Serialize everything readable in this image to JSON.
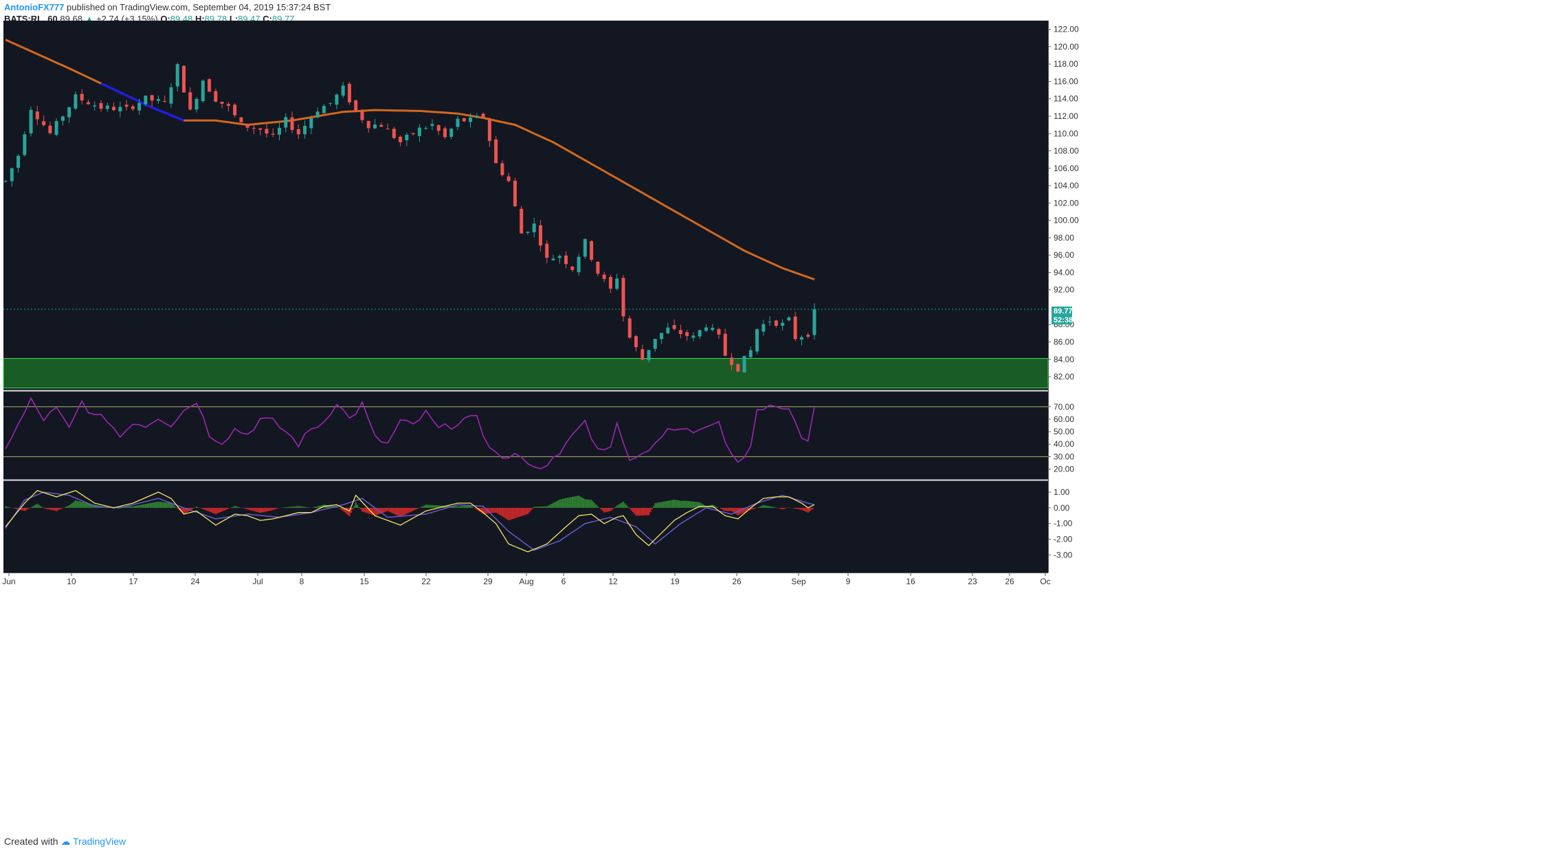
{
  "header": {
    "author": "AntonioFX777",
    "published": "published on TradingView.com, September 04, 2019 15:37:24 BST",
    "symbol": "BATS:RL, 60",
    "last": "89.68",
    "change": "+2.74 (+3.15%)",
    "o_label": "O:",
    "o": "89.48",
    "h_label": "H:",
    "h": "89.78",
    "l_label": "L:",
    "l": "89.47",
    "c_label": "C:",
    "c": "89.77"
  },
  "price_tag": "89.77",
  "countdown_tag": "52:38",
  "footer": {
    "created_with": "Created with",
    "brand": "TradingView"
  },
  "colors": {
    "background": "#131722",
    "up": "#26a69a",
    "down": "#ef5350",
    "ma": "#d2691e",
    "ma_alt": "#1a1aff",
    "zone": "#1a5c25",
    "rsi": "#9c27b0",
    "macd": "#f5e663",
    "signal": "#6a5acd",
    "hist_up": "#2e7d32",
    "hist_down": "#c62828"
  },
  "chart_data": [
    {
      "type": "candlestick",
      "symbol": "BATS:RL",
      "timeframe": "60",
      "y_ticks": [
        "122.00",
        "120.00",
        "118.00",
        "116.00",
        "114.00",
        "112.00",
        "110.00",
        "108.00",
        "106.00",
        "104.00",
        "102.00",
        "100.00",
        "98.00",
        "96.00",
        "94.00",
        "92.00",
        "88.00",
        "86.00",
        "84.00",
        "82.00"
      ],
      "ylim": [
        80.5,
        123
      ],
      "x_labels": [
        "Jun",
        "10",
        "17",
        "24",
        "Jul",
        "8",
        "15",
        "22",
        "29",
        "Aug",
        "6",
        "12",
        "19",
        "26",
        "Sep",
        "9",
        "16",
        "23",
        "26",
        "Oc"
      ],
      "price_path": [
        [
          0,
          104.5
        ],
        [
          2,
          107.5
        ],
        [
          4,
          113
        ],
        [
          7,
          110
        ],
        [
          11,
          114.2
        ],
        [
          15,
          113
        ],
        [
          19,
          112.8
        ],
        [
          22,
          114
        ],
        [
          25,
          113.5
        ],
        [
          27,
          117.7
        ],
        [
          29,
          112.5
        ],
        [
          31,
          116.2
        ],
        [
          33,
          114
        ],
        [
          35,
          113
        ],
        [
          37,
          111
        ],
        [
          40,
          110.5
        ],
        [
          42,
          109.5
        ],
        [
          44,
          111.5
        ],
        [
          46,
          110
        ],
        [
          49,
          112.8
        ],
        [
          51,
          113.5
        ],
        [
          53,
          115.2
        ],
        [
          55,
          112.5
        ],
        [
          57,
          111
        ],
        [
          59,
          111
        ],
        [
          62,
          109
        ],
        [
          65,
          110.5
        ],
        [
          67,
          111
        ],
        [
          69,
          109.5
        ],
        [
          71,
          111.5
        ],
        [
          73,
          111.5
        ],
        [
          75,
          112
        ],
        [
          77,
          106.5
        ],
        [
          79,
          104.5
        ],
        [
          81,
          98.5
        ],
        [
          83,
          99.5
        ],
        [
          85,
          95.5
        ],
        [
          87,
          96
        ],
        [
          89,
          94.5
        ],
        [
          91,
          97.5
        ],
        [
          93,
          94
        ],
        [
          95,
          92
        ],
        [
          96,
          93.5
        ],
        [
          97,
          89
        ],
        [
          98,
          86.5
        ],
        [
          100,
          84
        ],
        [
          102,
          86.5
        ],
        [
          104,
          87.5
        ],
        [
          106,
          87
        ],
        [
          108,
          86.5
        ],
        [
          110,
          88
        ],
        [
          112,
          86.5
        ],
        [
          113,
          84.5
        ],
        [
          115,
          83
        ],
        [
          117,
          85
        ],
        [
          118,
          87.5
        ],
        [
          120,
          88.5
        ],
        [
          122,
          88
        ],
        [
          123,
          88.5
        ],
        [
          124,
          86.5
        ],
        [
          126,
          87
        ],
        [
          127,
          89.77
        ]
      ],
      "n_points": 128,
      "moving_average": [
        [
          0,
          120.8
        ],
        [
          10,
          117.5
        ],
        [
          23,
          113
        ],
        [
          28,
          111.5
        ],
        [
          33,
          111.5
        ],
        [
          38,
          111
        ],
        [
          45,
          111.5
        ],
        [
          53,
          112.5
        ],
        [
          58,
          112.7
        ],
        [
          65,
          112.6
        ],
        [
          71,
          112.3
        ],
        [
          75,
          111.8
        ],
        [
          80,
          111
        ],
        [
          86,
          109
        ],
        [
          92,
          106.5
        ],
        [
          98,
          104
        ],
        [
          104,
          101.5
        ],
        [
          110,
          99
        ],
        [
          116,
          96.5
        ],
        [
          122,
          94.5
        ],
        [
          127,
          93.2
        ]
      ],
      "support_zone": [
        80.7,
        84.1
      ],
      "last_price": 89.77
    },
    {
      "type": "line",
      "name": "RSI",
      "y_ticks": [
        "70.00",
        "60.00",
        "50.00",
        "40.00",
        "30.00",
        "20.00"
      ],
      "ylim": [
        12,
        82
      ],
      "levels": [
        70,
        30
      ],
      "path": [
        [
          0,
          38
        ],
        [
          2,
          55
        ],
        [
          4,
          75
        ],
        [
          6,
          60
        ],
        [
          8,
          68
        ],
        [
          10,
          52
        ],
        [
          12,
          74
        ],
        [
          14,
          62
        ],
        [
          16,
          60
        ],
        [
          18,
          46
        ],
        [
          20,
          58
        ],
        [
          22,
          55
        ],
        [
          24,
          62
        ],
        [
          26,
          56
        ],
        [
          28,
          67
        ],
        [
          30,
          75
        ],
        [
          32,
          48
        ],
        [
          34,
          42
        ],
        [
          36,
          52
        ],
        [
          38,
          48
        ],
        [
          40,
          60
        ],
        [
          42,
          58
        ],
        [
          44,
          50
        ],
        [
          46,
          40
        ],
        [
          48,
          52
        ],
        [
          50,
          58
        ],
        [
          52,
          74
        ],
        [
          54,
          60
        ],
        [
          56,
          72
        ],
        [
          58,
          45
        ],
        [
          60,
          40
        ],
        [
          62,
          58
        ],
        [
          64,
          55
        ],
        [
          66,
          65
        ],
        [
          68,
          52
        ],
        [
          70,
          55
        ],
        [
          72,
          60
        ],
        [
          74,
          60
        ],
        [
          75,
          48
        ],
        [
          77,
          32
        ],
        [
          79,
          28
        ],
        [
          81,
          32
        ],
        [
          83,
          20
        ],
        [
          85,
          25
        ],
        [
          87,
          30
        ],
        [
          89,
          48
        ],
        [
          91,
          58
        ],
        [
          93,
          35
        ],
        [
          95,
          40
        ],
        [
          96,
          55
        ],
        [
          97,
          40
        ],
        [
          98,
          30
        ],
        [
          100,
          32
        ],
        [
          102,
          42
        ],
        [
          104,
          50
        ],
        [
          106,
          52
        ],
        [
          108,
          50
        ],
        [
          110,
          56
        ],
        [
          112,
          60
        ],
        [
          113,
          42
        ],
        [
          115,
          25
        ],
        [
          117,
          40
        ],
        [
          118,
          65
        ],
        [
          120,
          72
        ],
        [
          122,
          66
        ],
        [
          123,
          70
        ],
        [
          124,
          60
        ],
        [
          125,
          42
        ],
        [
          126,
          45
        ],
        [
          127,
          68
        ]
      ]
    },
    {
      "type": "line",
      "name": "MACD",
      "y_ticks": [
        "1.00",
        "0.00",
        "-1.00",
        "-2.00",
        "-3.00"
      ],
      "ylim": [
        -3.2,
        1.7
      ],
      "macd_path": [
        [
          0,
          -1.2
        ],
        [
          3,
          0.3
        ],
        [
          5,
          1.1
        ],
        [
          8,
          0.7
        ],
        [
          11,
          1.1
        ],
        [
          14,
          0.3
        ],
        [
          17,
          0
        ],
        [
          20,
          0.3
        ],
        [
          24,
          1
        ],
        [
          26,
          0.6
        ],
        [
          28,
          -0.4
        ],
        [
          30,
          -0.2
        ],
        [
          33,
          -1.1
        ],
        [
          36,
          -0.4
        ],
        [
          38,
          -0.5
        ],
        [
          40,
          -0.8
        ],
        [
          42,
          -0.7
        ],
        [
          44,
          -0.5
        ],
        [
          46,
          -0.3
        ],
        [
          48,
          -0.3
        ],
        [
          50,
          0.1
        ],
        [
          52,
          0.2
        ],
        [
          54,
          -0.2
        ],
        [
          55,
          0.8
        ],
        [
          58,
          -0.5
        ],
        [
          62,
          -1.1
        ],
        [
          66,
          -0.2
        ],
        [
          69,
          0.1
        ],
        [
          71,
          0.3
        ],
        [
          73,
          0.3
        ],
        [
          75,
          -0.3
        ],
        [
          77,
          -1
        ],
        [
          79,
          -2.3
        ],
        [
          82,
          -2.8
        ],
        [
          85,
          -2.3
        ],
        [
          88,
          -1.2
        ],
        [
          90,
          -0.5
        ],
        [
          92,
          -0.4
        ],
        [
          94,
          -1
        ],
        [
          96,
          -0.6
        ],
        [
          97,
          -0.5
        ],
        [
          99,
          -1.7
        ],
        [
          101,
          -2.4
        ],
        [
          103,
          -1.6
        ],
        [
          105,
          -0.8
        ],
        [
          107,
          -0.3
        ],
        [
          109,
          0.1
        ],
        [
          111,
          0.1
        ],
        [
          113,
          -0.5
        ],
        [
          115,
          -0.7
        ],
        [
          117,
          0
        ],
        [
          119,
          0.6
        ],
        [
          121,
          0.7
        ],
        [
          123,
          0.7
        ],
        [
          125,
          0.3
        ],
        [
          126,
          0
        ],
        [
          127,
          0.2
        ]
      ],
      "signal_path": [
        [
          0,
          -1.3
        ],
        [
          3,
          0.5
        ],
        [
          6,
          1
        ],
        [
          10,
          0.8
        ],
        [
          14,
          0.1
        ],
        [
          18,
          0
        ],
        [
          24,
          0.6
        ],
        [
          28,
          0
        ],
        [
          33,
          -0.7
        ],
        [
          38,
          -0.4
        ],
        [
          43,
          -0.6
        ],
        [
          48,
          -0.3
        ],
        [
          53,
          0.2
        ],
        [
          56,
          0.6
        ],
        [
          60,
          -0.6
        ],
        [
          66,
          -0.4
        ],
        [
          71,
          0.2
        ],
        [
          75,
          0.1
        ],
        [
          79,
          -1.5
        ],
        [
          83,
          -2.7
        ],
        [
          87,
          -2.1
        ],
        [
          91,
          -1
        ],
        [
          95,
          -0.6
        ],
        [
          99,
          -1.2
        ],
        [
          102,
          -2.3
        ],
        [
          106,
          -1
        ],
        [
          110,
          0
        ],
        [
          114,
          -0.4
        ],
        [
          118,
          0.3
        ],
        [
          122,
          0.8
        ],
        [
          126,
          0.3
        ],
        [
          127,
          0.2
        ]
      ],
      "zero_line": 0
    }
  ]
}
